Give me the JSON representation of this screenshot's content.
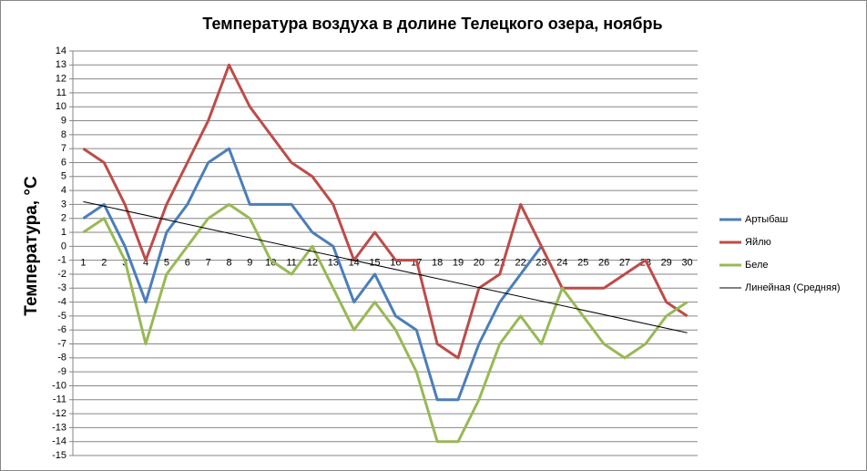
{
  "chart_data": {
    "type": "line",
    "title": "Температура воздуха в долине Телецкого озера, ноябрь",
    "y_label": "Температура, °С",
    "x": [
      1,
      2,
      3,
      4,
      5,
      6,
      7,
      8,
      9,
      10,
      11,
      12,
      13,
      14,
      15,
      16,
      17,
      18,
      19,
      20,
      21,
      22,
      23,
      24,
      25,
      26,
      27,
      28,
      29,
      30
    ],
    "xlim": [
      0.5,
      30.5
    ],
    "ylim": [
      -15,
      14
    ],
    "yticks": [
      -15,
      -14,
      -13,
      -12,
      -11,
      -10,
      -9,
      -8,
      -7,
      -6,
      -5,
      -4,
      -3,
      -2,
      -1,
      0,
      1,
      2,
      3,
      4,
      5,
      6,
      7,
      8,
      9,
      10,
      11,
      12,
      13,
      14
    ],
    "grid": true,
    "legend": "right",
    "series": [
      {
        "name": "Артыбаш",
        "color": "#4a7ebb",
        "values": [
          2,
          3,
          0,
          -4,
          1,
          3,
          6,
          7,
          3,
          3,
          3,
          1,
          0,
          -4,
          -2,
          -5,
          -6,
          -11,
          -11,
          -7,
          -4,
          -2,
          0,
          null,
          null,
          null,
          null,
          null,
          null,
          null
        ]
      },
      {
        "name": "Яйлю",
        "color": "#be4b48",
        "values": [
          7,
          6,
          3,
          -1,
          3,
          6,
          9,
          13,
          10,
          8,
          6,
          5,
          3,
          -1,
          1,
          -1,
          -1,
          -7,
          -8,
          -3,
          -2,
          3,
          0,
          -3,
          -3,
          -3,
          -2,
          -1,
          -4,
          -5
        ]
      },
      {
        "name": "Беле",
        "color": "#98b954",
        "values": [
          1,
          2,
          -1,
          -7,
          -2,
          0,
          2,
          3,
          2,
          -1,
          -2,
          0,
          -3,
          -6,
          -4,
          -6,
          -9,
          -14,
          -14,
          -11,
          -7,
          -5,
          -7,
          -3,
          -5,
          -7,
          -8,
          -7,
          -5,
          -4
        ]
      }
    ],
    "trendline": {
      "name": "Линейная (Средняя)",
      "color": "#000000",
      "x": [
        1,
        30
      ],
      "values": [
        3.2,
        -6.2
      ]
    }
  }
}
